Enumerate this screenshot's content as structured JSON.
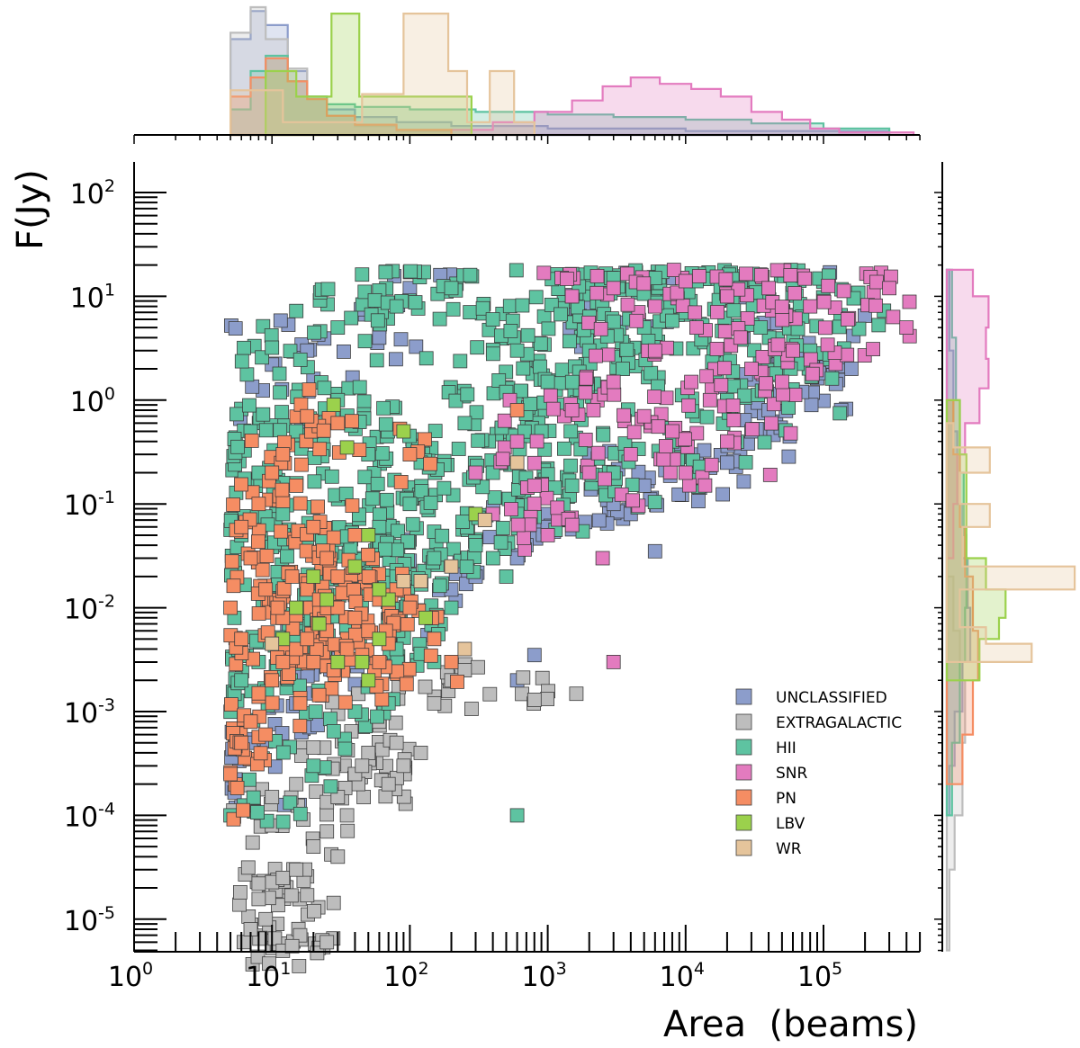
{
  "chart_data": {
    "type": "scatter",
    "xlabel": "Area  (beams)",
    "ylabel": "F(Jy)",
    "xscale": "log",
    "yscale": "log",
    "xlim": [
      1,
      500000
    ],
    "ylim": [
      5e-06,
      200
    ],
    "x_ticks": [
      {
        "base": "10",
        "exp": "0"
      },
      {
        "base": "10",
        "exp": "1"
      },
      {
        "base": "10",
        "exp": "2"
      },
      {
        "base": "10",
        "exp": "3"
      },
      {
        "base": "10",
        "exp": "4"
      },
      {
        "base": "10",
        "exp": "5"
      }
    ],
    "y_ticks": [
      {
        "base": "10",
        "exp": "-5"
      },
      {
        "base": "10",
        "exp": "-4"
      },
      {
        "base": "10",
        "exp": "-3"
      },
      {
        "base": "10",
        "exp": "-2"
      },
      {
        "base": "10",
        "exp": "-1"
      },
      {
        "base": "10",
        "exp": "0"
      },
      {
        "base": "10",
        "exp": "1"
      },
      {
        "base": "10",
        "exp": "2"
      }
    ],
    "legend_position": "lower-right",
    "marginal_histograms": "top (Area) and right (F), one outlined translucent histogram per class",
    "series": [
      {
        "name": "UNCLASSIFIED",
        "color": "#8c9dcb",
        "points": [
          [
            18,
            3.0
          ],
          [
            10,
            2.2
          ],
          [
            20,
            1.6
          ],
          [
            60,
            4.0
          ],
          [
            100,
            12
          ],
          [
            2000,
            8
          ],
          [
            8000,
            10
          ],
          [
            50000,
            3
          ],
          [
            120000,
            2.5
          ],
          [
            70000,
            1.2
          ],
          [
            30000,
            0.5
          ],
          [
            20000,
            0.25
          ],
          [
            3000,
            0.1
          ],
          [
            1000,
            0.06
          ],
          [
            6000,
            0.035
          ],
          [
            600,
            0.03
          ],
          [
            200,
            0.015
          ],
          [
            150,
            0.006
          ],
          [
            600,
            0.002
          ],
          [
            800,
            0.0035
          ],
          [
            12000,
            0.18
          ],
          [
            7,
            0.0005
          ],
          [
            6,
            0.00012
          ],
          [
            15,
            0.0012
          ],
          [
            300,
            0.02
          ],
          [
            5000,
            0.15
          ],
          [
            40000,
            0.8
          ],
          [
            90000,
            2.8
          ],
          [
            4000,
            0.08
          ],
          [
            700,
            0.04
          ],
          [
            40,
            0.003
          ],
          [
            20,
            0.0015
          ]
        ]
      },
      {
        "name": "EXTRAGALACTIC",
        "color": "#bdbdbd",
        "points": [
          [
            10,
            8e-05
          ],
          [
            20,
            5e-05
          ],
          [
            30,
            4e-05
          ],
          [
            12,
            2.5e-05
          ],
          [
            8,
            2.2e-05
          ],
          [
            15,
            3e-05
          ],
          [
            18,
            1.7e-05
          ],
          [
            9,
            1e-05
          ],
          [
            16,
            7e-06
          ],
          [
            25,
            6e-06
          ],
          [
            7,
            8e-06
          ],
          [
            14,
            5.5e-06
          ],
          [
            30,
            0.00015
          ],
          [
            40,
            0.00025
          ],
          [
            50,
            0.0004
          ],
          [
            80,
            0.0005
          ],
          [
            120,
            0.0004
          ],
          [
            20,
            0.00045
          ],
          [
            15,
            0.0002
          ],
          [
            35,
            0.0001
          ],
          [
            60,
            0.0008
          ],
          [
            200,
            0.002
          ],
          [
            800,
            0.0013
          ],
          [
            25,
            7e-05
          ],
          [
            10,
            0.00015
          ],
          [
            45,
            0.0003
          ],
          [
            70,
            0.0002
          ],
          [
            150,
            0.0012
          ],
          [
            250,
            0.0025
          ],
          [
            90,
            0.0003
          ]
        ]
      },
      {
        "name": "HII",
        "color": "#5ec3a1",
        "points": [
          [
            10,
            3.2
          ],
          [
            30,
            5
          ],
          [
            80,
            8
          ],
          [
            200,
            12
          ],
          [
            400,
            6
          ],
          [
            600,
            3
          ],
          [
            1000,
            1.5
          ],
          [
            1500,
            10
          ],
          [
            3000,
            15
          ],
          [
            6000,
            15
          ],
          [
            12000,
            14
          ],
          [
            25000,
            12
          ],
          [
            60000,
            13
          ],
          [
            100000,
            9
          ],
          [
            80000,
            3
          ],
          [
            20000,
            1
          ],
          [
            8000,
            0.4
          ],
          [
            3000,
            0.2
          ],
          [
            1500,
            0.15
          ],
          [
            600,
            0.08
          ],
          [
            300,
            0.04
          ],
          [
            150,
            0.03
          ],
          [
            80,
            0.02
          ],
          [
            40,
            0.015
          ],
          [
            20,
            0.01
          ],
          [
            15,
            0.005
          ],
          [
            8,
            0.003
          ],
          [
            6,
            0.002
          ],
          [
            5,
            0.0001
          ],
          [
            20,
            0.0003
          ],
          [
            40,
            0.001
          ],
          [
            80,
            0.004
          ],
          [
            200,
            0.01
          ],
          [
            500,
            0.02
          ],
          [
            100,
            0.1
          ],
          [
            50,
            0.3
          ],
          [
            30,
            1
          ],
          [
            15,
            0.5
          ],
          [
            8,
            0.2
          ],
          [
            6,
            0.05
          ],
          [
            7,
            0.5
          ],
          [
            12,
            0.08
          ],
          [
            25,
            0.03
          ],
          [
            60,
            0.06
          ],
          [
            120,
            0.25
          ],
          [
            250,
            0.6
          ],
          [
            500,
            1.2
          ],
          [
            900,
            0.5
          ],
          [
            2000,
            3
          ],
          [
            5000,
            5
          ],
          [
            10000,
            7
          ],
          [
            600,
            0.0001
          ],
          [
            150,
            0.003
          ],
          [
            70,
            0.0012
          ],
          [
            3500,
            2
          ],
          [
            35000,
            5
          ],
          [
            45000,
            1.8
          ],
          [
            1200,
            0.9
          ],
          [
            400,
            0.2
          ]
        ]
      },
      {
        "name": "SNR",
        "color": "#e37bbf",
        "points": [
          [
            1500,
            10
          ],
          [
            3000,
            12
          ],
          [
            6000,
            8
          ],
          [
            10000,
            14
          ],
          [
            20000,
            10
          ],
          [
            40000,
            12
          ],
          [
            80000,
            8
          ],
          [
            300000,
            12
          ],
          [
            400000,
            5
          ],
          [
            150000,
            6
          ],
          [
            60000,
            3
          ],
          [
            30000,
            2
          ],
          [
            15000,
            1
          ],
          [
            8000,
            0.5
          ],
          [
            4000,
            0.3
          ],
          [
            2000,
            0.2
          ],
          [
            1000,
            0.05
          ],
          [
            400,
            0.08
          ],
          [
            300,
            0.2
          ],
          [
            600,
            0.4
          ],
          [
            1500,
            0.8
          ],
          [
            3000,
            1.5
          ],
          [
            6000,
            3
          ],
          [
            12000,
            5
          ],
          [
            25000,
            4
          ],
          [
            50000,
            1.5
          ],
          [
            20000,
            0.4
          ],
          [
            3000,
            0.003
          ],
          [
            2500,
            0.03
          ],
          [
            10000,
            0.2
          ],
          [
            5000,
            0.7
          ],
          [
            800,
            0.15
          ]
        ]
      },
      {
        "name": "PN",
        "color": "#f58d63",
        "points": [
          [
            5,
            0.00025
          ],
          [
            6,
            0.0005
          ],
          [
            7,
            0.0008
          ],
          [
            8,
            0.0015
          ],
          [
            10,
            0.002
          ],
          [
            12,
            0.003
          ],
          [
            15,
            0.004
          ],
          [
            18,
            0.005
          ],
          [
            20,
            0.003
          ],
          [
            25,
            0.006
          ],
          [
            30,
            0.01
          ],
          [
            40,
            0.008
          ],
          [
            50,
            0.006
          ],
          [
            60,
            0.012
          ],
          [
            80,
            0.015
          ],
          [
            100,
            0.01
          ],
          [
            150,
            0.005
          ],
          [
            200,
            0.003
          ],
          [
            12,
            0.008
          ],
          [
            9,
            0.015
          ],
          [
            7,
            0.03
          ],
          [
            6,
            0.06
          ],
          [
            8,
            0.1
          ],
          [
            10,
            0.2
          ],
          [
            12,
            0.3
          ],
          [
            15,
            0.15
          ],
          [
            20,
            0.06
          ],
          [
            25,
            0.03
          ],
          [
            30,
            0.02
          ],
          [
            40,
            0.05
          ],
          [
            14,
            0.02
          ],
          [
            11,
            0.01
          ],
          [
            18,
            0.015
          ],
          [
            22,
            0.012
          ],
          [
            35,
            0.004
          ],
          [
            45,
            0.0035
          ],
          [
            60,
            0.003
          ],
          [
            600,
            0.8
          ],
          [
            100,
            0.3
          ],
          [
            30,
            0.6
          ],
          [
            18,
            0.7
          ],
          [
            6,
            0.005
          ],
          [
            5,
            0.01
          ],
          [
            16,
            0.0012
          ],
          [
            9,
            0.0006
          ],
          [
            28,
            0.0025
          ],
          [
            70,
            0.0045
          ]
        ]
      },
      {
        "name": "LBV",
        "color": "#9bd14c",
        "points": [
          [
            28,
            0.9
          ],
          [
            35,
            0.35
          ],
          [
            90,
            0.5
          ],
          [
            300,
            0.08
          ],
          [
            50,
            0.05
          ],
          [
            40,
            0.025
          ],
          [
            20,
            0.02
          ],
          [
            15,
            0.01
          ],
          [
            12,
            0.005
          ],
          [
            22,
            0.007
          ],
          [
            30,
            0.003
          ],
          [
            45,
            0.003
          ],
          [
            60,
            0.005
          ],
          [
            130,
            0.008
          ],
          [
            70,
            0.012
          ],
          [
            60,
            0.015
          ],
          [
            25,
            0.012
          ],
          [
            50,
            0.002
          ]
        ]
      },
      {
        "name": "WR",
        "color": "#e5c49b",
        "points": [
          [
            600,
            0.25
          ],
          [
            350,
            0.07
          ],
          [
            200,
            0.025
          ],
          [
            120,
            0.018
          ],
          [
            90,
            0.018
          ],
          [
            250,
            0.004
          ],
          [
            10,
            0.0045
          ]
        ]
      }
    ]
  }
}
